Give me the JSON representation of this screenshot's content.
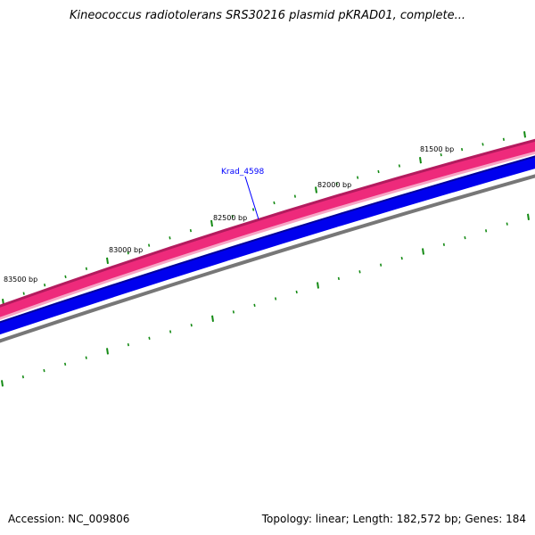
{
  "title": "Kineococcus radiotolerans SRS30216 plasmid pKRAD01, complete...",
  "colors": {
    "forward_track": "#ee2a7b",
    "forward_track_dark": "#b31b5e",
    "forward_track_light": "#f7a6c6",
    "reverse_track": "#0000ee",
    "reverse_track_dark": "#00009a",
    "backbone": "#777777",
    "ticks": "#138a13",
    "gene_label": "#0000ff"
  },
  "ticks": {
    "labels": [
      "83500 bp",
      "83000 bp",
      "82500 bp",
      "82000 bp",
      "81500 bp"
    ]
  },
  "gene_label": {
    "text": "Krad_4598",
    "icon": "label-pointer-line"
  },
  "footer": {
    "accession": "Accession: NC_009806",
    "stats": "Topology: linear; Length: 182,572 bp; Genes: 184"
  }
}
